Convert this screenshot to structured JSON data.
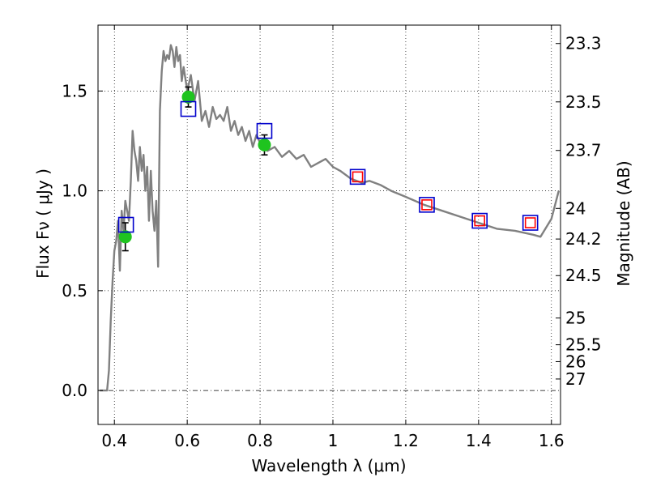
{
  "chart_data": {
    "type": "line",
    "xlabel": "Wavelength  λ (μm)",
    "ylabel": "Flux  Fν  ( μJy )",
    "ylabel_right": "Magnitude (AB)",
    "xlim": [
      0.355,
      1.625
    ],
    "ylim": [
      -0.17,
      1.83
    ],
    "x_ticks": [
      0.4,
      0.6,
      0.8,
      1.0,
      1.2,
      1.4,
      1.6
    ],
    "x_tick_labels": [
      "0.4",
      "0.6",
      "0.8",
      "1",
      "1.2",
      "1.4",
      "1.6"
    ],
    "y_ticks": [
      0.0,
      0.5,
      1.0,
      1.5
    ],
    "y_tick_labels": [
      "0.0",
      "0.5",
      "1.0",
      "1.5"
    ],
    "right_ticks": [
      {
        "label": "23.3",
        "value": 23.3
      },
      {
        "label": "23.5",
        "value": 23.5
      },
      {
        "label": "23.7",
        "value": 23.7
      },
      {
        "label": "24",
        "value": 24.0
      },
      {
        "label": "24.2",
        "value": 24.2
      },
      {
        "label": "24.5",
        "value": 24.5
      },
      {
        "label": "25",
        "value": 25.0
      },
      {
        "label": "25.5",
        "value": 25.5
      },
      {
        "label": "26",
        "value": 26.0
      },
      {
        "label": "27",
        "value": 27.0
      }
    ],
    "grid": true,
    "series": [
      {
        "kind": "line",
        "color": "#808080",
        "x": [
          0.36,
          0.38,
          0.385,
          0.39,
          0.395,
          0.4,
          0.405,
          0.41,
          0.415,
          0.42,
          0.425,
          0.43,
          0.435,
          0.44,
          0.445,
          0.45,
          0.455,
          0.46,
          0.465,
          0.47,
          0.475,
          0.48,
          0.485,
          0.49,
          0.495,
          0.5,
          0.505,
          0.51,
          0.515,
          0.52,
          0.525,
          0.53,
          0.535,
          0.54,
          0.545,
          0.55,
          0.555,
          0.56,
          0.565,
          0.57,
          0.575,
          0.58,
          0.585,
          0.59,
          0.6,
          0.61,
          0.62,
          0.63,
          0.64,
          0.65,
          0.66,
          0.67,
          0.68,
          0.69,
          0.7,
          0.71,
          0.72,
          0.73,
          0.74,
          0.75,
          0.76,
          0.77,
          0.78,
          0.79,
          0.8,
          0.82,
          0.84,
          0.86,
          0.88,
          0.9,
          0.92,
          0.94,
          0.96,
          0.98,
          1.0,
          1.02,
          1.05,
          1.08,
          1.1,
          1.13,
          1.16,
          1.2,
          1.25,
          1.3,
          1.35,
          1.4,
          1.45,
          1.5,
          1.55,
          1.57,
          1.6,
          1.62
        ],
        "y": [
          0.0,
          0.0,
          0.1,
          0.35,
          0.55,
          0.7,
          0.75,
          0.85,
          0.6,
          0.9,
          0.8,
          0.95,
          0.9,
          0.85,
          1.05,
          1.3,
          1.2,
          1.15,
          1.05,
          1.22,
          1.1,
          1.18,
          1.0,
          1.12,
          0.85,
          1.1,
          0.9,
          0.8,
          0.95,
          0.62,
          1.4,
          1.6,
          1.7,
          1.65,
          1.68,
          1.66,
          1.73,
          1.7,
          1.62,
          1.72,
          1.65,
          1.68,
          1.55,
          1.62,
          1.5,
          1.58,
          1.45,
          1.55,
          1.35,
          1.4,
          1.32,
          1.42,
          1.36,
          1.38,
          1.35,
          1.42,
          1.3,
          1.35,
          1.28,
          1.32,
          1.25,
          1.3,
          1.22,
          1.28,
          1.24,
          1.2,
          1.22,
          1.17,
          1.2,
          1.16,
          1.18,
          1.12,
          1.14,
          1.16,
          1.12,
          1.1,
          1.06,
          1.04,
          1.05,
          1.03,
          1.0,
          0.97,
          0.93,
          0.9,
          0.87,
          0.84,
          0.81,
          0.8,
          0.78,
          0.77,
          0.86,
          1.0
        ]
      },
      {
        "kind": "points",
        "marker": "circle",
        "color": "#1fc41f",
        "x": [
          0.43,
          0.603,
          0.812
        ],
        "y": [
          0.77,
          1.47,
          1.23
        ],
        "yerr": [
          0.07,
          0.05,
          0.05
        ]
      },
      {
        "kind": "points",
        "marker": "square",
        "color": "#0000cc",
        "x": [
          0.432,
          0.603,
          0.812,
          1.068,
          1.258,
          1.403,
          1.542
        ],
        "y": [
          0.83,
          1.41,
          1.3,
          1.07,
          0.93,
          0.85,
          0.84
        ]
      },
      {
        "kind": "points",
        "marker": "square",
        "color": "#ff0000",
        "x": [
          1.068,
          1.258,
          1.403,
          1.542
        ],
        "y": [
          1.07,
          0.93,
          0.85,
          0.84
        ]
      }
    ]
  }
}
